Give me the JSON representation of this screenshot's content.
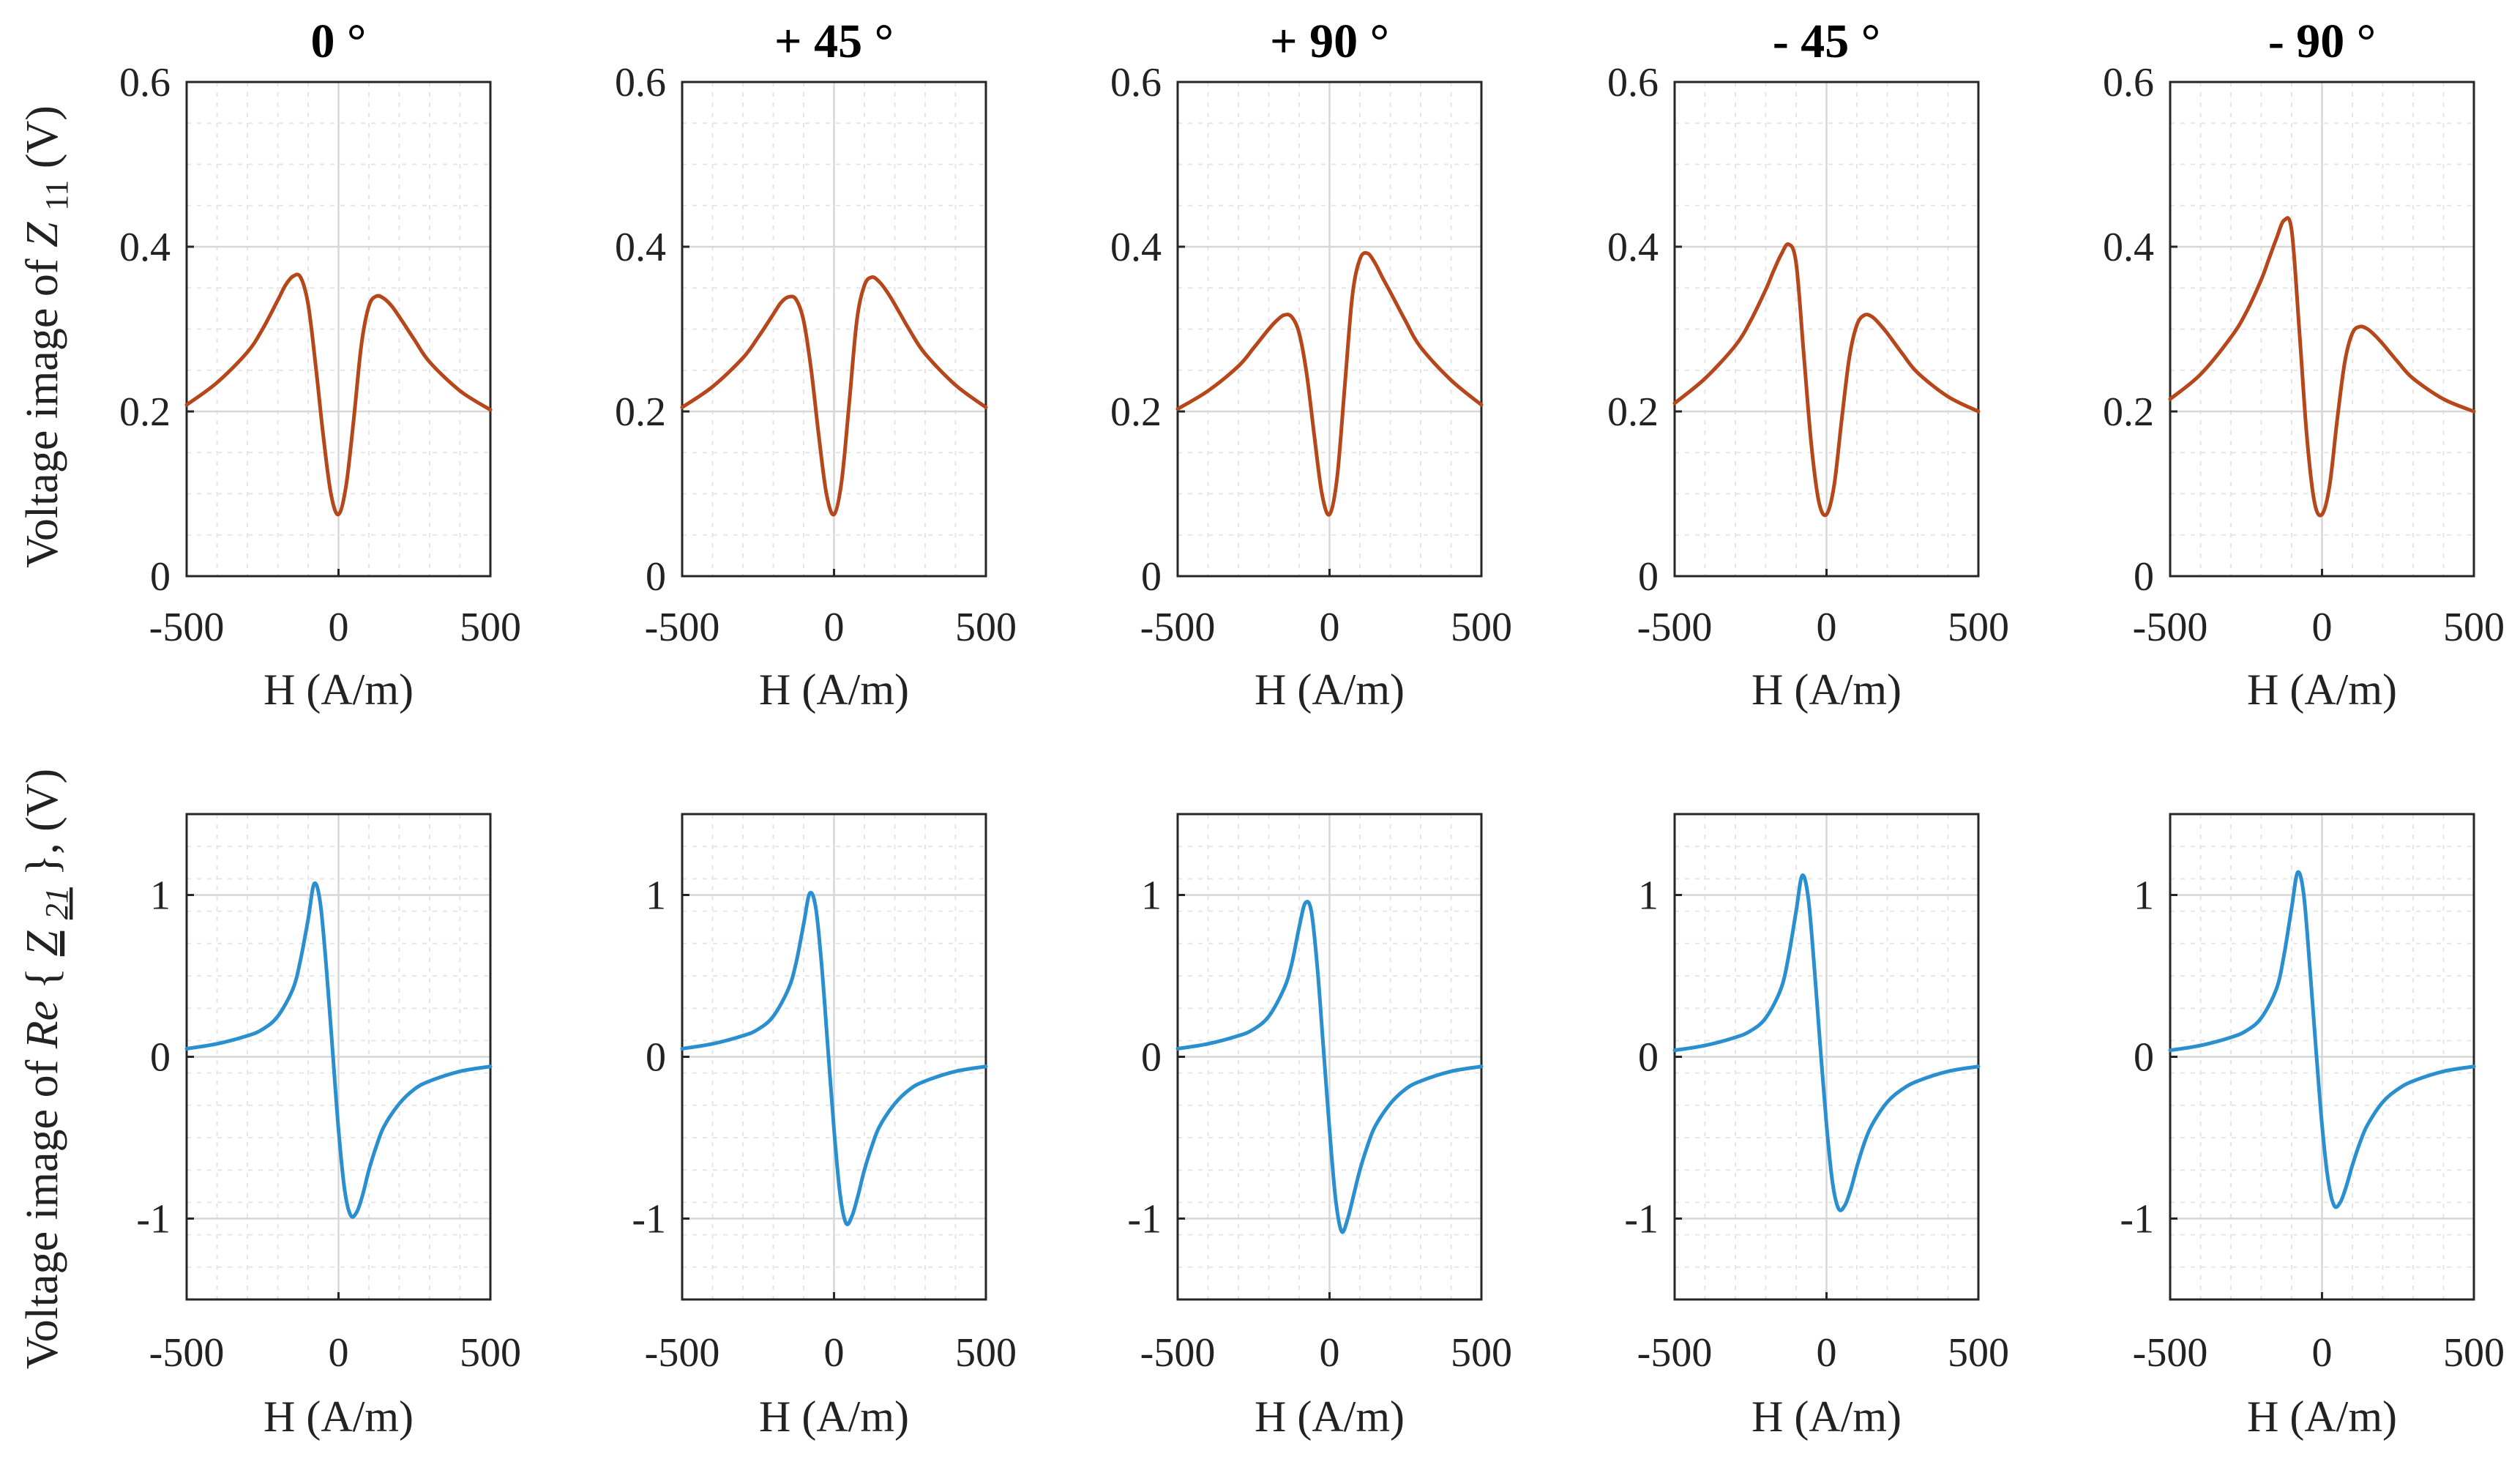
{
  "colors": {
    "top_series": "#b5471a",
    "bottom_series": "#2a8fcf"
  },
  "column_titles": [
    "0 °",
    "+ 45 °",
    "+ 90 °",
    "- 45 °",
    "- 90 °"
  ],
  "ylabel_top": {
    "prefix": "Voltage image of ",
    "symbol": "Z",
    "subscript": "11",
    "suffix": " (V)"
  },
  "ylabel_bottom": {
    "prefix": "Voltage image of ",
    "re": "Re",
    "open": "{",
    "symbol": "Z",
    "subscript": "21",
    "close": "},",
    "suffix": " (V)"
  },
  "chart_data": [
    {
      "type": "line",
      "row": "top",
      "title": "0 °",
      "xlabel": "H (A/m)",
      "ylabel": "Voltage image of Z11 (V)",
      "xlim": [
        -500,
        500
      ],
      "ylim": [
        0,
        0.6
      ],
      "xticks": [
        -500,
        0,
        500
      ],
      "xtick_labels": [
        "-500",
        "0",
        "500"
      ],
      "yticks": [
        0,
        0.2,
        0.4,
        0.6
      ],
      "ytick_labels": [
        "0",
        "0.2",
        "0.4",
        "0.6"
      ],
      "grid": true,
      "series": [
        {
          "name": "Z11",
          "color": "#b5471a",
          "x": [
            -500,
            -400,
            -300,
            -250,
            -200,
            -175,
            -150,
            -125,
            -100,
            -75,
            -50,
            -25,
            0,
            25,
            50,
            75,
            100,
            125,
            150,
            175,
            200,
            250,
            300,
            400,
            500
          ],
          "y": [
            0.208,
            0.235,
            0.272,
            0.3,
            0.335,
            0.353,
            0.364,
            0.363,
            0.33,
            0.255,
            0.17,
            0.1,
            0.075,
            0.11,
            0.19,
            0.28,
            0.328,
            0.34,
            0.337,
            0.328,
            0.315,
            0.287,
            0.26,
            0.225,
            0.202
          ]
        }
      ]
    },
    {
      "type": "line",
      "row": "top",
      "title": "+ 45 °",
      "xlabel": "H (A/m)",
      "ylabel": "",
      "xlim": [
        -500,
        500
      ],
      "ylim": [
        0,
        0.6
      ],
      "xticks": [
        -500,
        0,
        500
      ],
      "xtick_labels": [
        "-500",
        "0",
        "500"
      ],
      "yticks": [
        0,
        0.2,
        0.4,
        0.6
      ],
      "ytick_labels": [
        "0",
        "0.2",
        "0.4",
        "0.6"
      ],
      "grid": true,
      "series": [
        {
          "name": "Z11",
          "color": "#b5471a",
          "x": [
            -500,
            -400,
            -300,
            -250,
            -200,
            -175,
            -150,
            -125,
            -100,
            -75,
            -50,
            -25,
            0,
            25,
            50,
            75,
            100,
            125,
            150,
            175,
            200,
            250,
            300,
            400,
            500
          ],
          "y": [
            0.205,
            0.23,
            0.265,
            0.29,
            0.318,
            0.332,
            0.339,
            0.336,
            0.31,
            0.25,
            0.17,
            0.1,
            0.075,
            0.115,
            0.21,
            0.31,
            0.353,
            0.363,
            0.357,
            0.345,
            0.33,
            0.298,
            0.27,
            0.232,
            0.205
          ]
        }
      ]
    },
    {
      "type": "line",
      "row": "top",
      "title": "+ 90 °",
      "xlabel": "H (A/m)",
      "ylabel": "",
      "xlim": [
        -500,
        500
      ],
      "ylim": [
        0,
        0.6
      ],
      "xticks": [
        -500,
        0,
        500
      ],
      "xtick_labels": [
        "-500",
        "0",
        "500"
      ],
      "yticks": [
        0,
        0.2,
        0.4,
        0.6
      ],
      "ytick_labels": [
        "0",
        "0.2",
        "0.4",
        "0.6"
      ],
      "grid": true,
      "series": [
        {
          "name": "Z11",
          "color": "#b5471a",
          "x": [
            -500,
            -400,
            -300,
            -250,
            -200,
            -175,
            -150,
            -125,
            -100,
            -75,
            -50,
            -25,
            0,
            25,
            50,
            75,
            100,
            125,
            150,
            175,
            200,
            250,
            300,
            400,
            500
          ],
          "y": [
            0.203,
            0.225,
            0.255,
            0.277,
            0.3,
            0.31,
            0.317,
            0.315,
            0.295,
            0.245,
            0.17,
            0.1,
            0.075,
            0.12,
            0.23,
            0.34,
            0.385,
            0.392,
            0.38,
            0.362,
            0.345,
            0.31,
            0.278,
            0.238,
            0.208
          ]
        }
      ]
    },
    {
      "type": "line",
      "row": "top",
      "title": "- 45 °",
      "xlabel": "H (A/m)",
      "ylabel": "",
      "xlim": [
        -500,
        500
      ],
      "ylim": [
        0,
        0.6
      ],
      "xticks": [
        -500,
        0,
        500
      ],
      "xtick_labels": [
        "-500",
        "0",
        "500"
      ],
      "yticks": [
        0,
        0.2,
        0.4,
        0.6
      ],
      "ytick_labels": [
        "0",
        "0.2",
        "0.4",
        "0.6"
      ],
      "grid": true,
      "series": [
        {
          "name": "Z11",
          "color": "#b5471a",
          "x": [
            -500,
            -400,
            -300,
            -250,
            -200,
            -175,
            -150,
            -125,
            -100,
            -75,
            -50,
            -25,
            0,
            25,
            50,
            75,
            100,
            125,
            150,
            175,
            200,
            250,
            300,
            400,
            500
          ],
          "y": [
            0.21,
            0.24,
            0.28,
            0.31,
            0.348,
            0.37,
            0.39,
            0.403,
            0.38,
            0.27,
            0.16,
            0.09,
            0.075,
            0.11,
            0.19,
            0.265,
            0.305,
            0.317,
            0.315,
            0.306,
            0.295,
            0.27,
            0.247,
            0.218,
            0.2
          ]
        }
      ]
    },
    {
      "type": "line",
      "row": "top",
      "title": "- 90 °",
      "xlabel": "H (A/m)",
      "ylabel": "",
      "xlim": [
        -500,
        500
      ],
      "ylim": [
        0,
        0.6
      ],
      "xticks": [
        -500,
        0,
        500
      ],
      "xtick_labels": [
        "-500",
        "0",
        "500"
      ],
      "yticks": [
        0,
        0.2,
        0.4,
        0.6
      ],
      "ytick_labels": [
        "0",
        "0.2",
        "0.4",
        "0.6"
      ],
      "grid": true,
      "series": [
        {
          "name": "Z11",
          "color": "#b5471a",
          "x": [
            -500,
            -400,
            -300,
            -250,
            -200,
            -175,
            -150,
            -125,
            -100,
            -75,
            -50,
            -25,
            0,
            25,
            50,
            75,
            100,
            125,
            150,
            175,
            200,
            250,
            300,
            400,
            500
          ],
          "y": [
            0.215,
            0.245,
            0.29,
            0.32,
            0.36,
            0.385,
            0.41,
            0.432,
            0.42,
            0.3,
            0.17,
            0.09,
            0.075,
            0.11,
            0.19,
            0.26,
            0.295,
            0.303,
            0.3,
            0.292,
            0.282,
            0.26,
            0.24,
            0.215,
            0.2
          ]
        }
      ]
    },
    {
      "type": "line",
      "row": "bottom",
      "title": "0 °",
      "xlabel": "H (A/m)",
      "ylabel": "Voltage image of Re{Z21}, (V)",
      "xlim": [
        -500,
        500
      ],
      "ylim": [
        -1.5,
        1.5
      ],
      "xticks": [
        -500,
        0,
        500
      ],
      "xtick_labels": [
        "-500",
        "0",
        "500"
      ],
      "yticks": [
        -1,
        0,
        1
      ],
      "ytick_labels": [
        "-1",
        "0",
        "1"
      ],
      "grid": true,
      "series": [
        {
          "name": "Re{Z21}",
          "color": "#2a8fcf",
          "x": [
            -500,
            -400,
            -300,
            -250,
            -200,
            -150,
            -125,
            -100,
            -80,
            -60,
            -40,
            -20,
            0,
            20,
            40,
            60,
            80,
            100,
            125,
            150,
            200,
            250,
            300,
            400,
            500
          ],
          "y": [
            0.05,
            0.08,
            0.13,
            0.17,
            0.25,
            0.42,
            0.6,
            0.85,
            1.07,
            0.95,
            0.55,
            0.05,
            -0.45,
            -0.82,
            -0.98,
            -0.96,
            -0.85,
            -0.7,
            -0.55,
            -0.43,
            -0.29,
            -0.2,
            -0.15,
            -0.09,
            -0.06
          ]
        }
      ]
    },
    {
      "type": "line",
      "row": "bottom",
      "title": "+ 45 °",
      "xlabel": "H (A/m)",
      "ylabel": "",
      "xlim": [
        -500,
        500
      ],
      "ylim": [
        -1.5,
        1.5
      ],
      "xticks": [
        -500,
        0,
        500
      ],
      "xtick_labels": [
        "-500",
        "0",
        "500"
      ],
      "yticks": [
        -1,
        0,
        1
      ],
      "ytick_labels": [
        "-1",
        "0",
        "1"
      ],
      "grid": true,
      "series": [
        {
          "name": "Re{Z21}",
          "color": "#2a8fcf",
          "x": [
            -500,
            -400,
            -300,
            -250,
            -200,
            -150,
            -125,
            -100,
            -80,
            -60,
            -40,
            -20,
            0,
            20,
            40,
            60,
            80,
            100,
            125,
            150,
            200,
            250,
            300,
            400,
            500
          ],
          "y": [
            0.05,
            0.08,
            0.13,
            0.17,
            0.25,
            0.42,
            0.58,
            0.82,
            1.01,
            0.92,
            0.55,
            0.05,
            -0.45,
            -0.85,
            -1.03,
            -0.98,
            -0.85,
            -0.7,
            -0.55,
            -0.43,
            -0.29,
            -0.2,
            -0.15,
            -0.09,
            -0.06
          ]
        }
      ]
    },
    {
      "type": "line",
      "row": "bottom",
      "title": "+ 90 °",
      "xlabel": "H (A/m)",
      "ylabel": "",
      "xlim": [
        -500,
        500
      ],
      "ylim": [
        -1.5,
        1.5
      ],
      "xticks": [
        -500,
        0,
        500
      ],
      "xtick_labels": [
        "-500",
        "0",
        "500"
      ],
      "yticks": [
        -1,
        0,
        1
      ],
      "ytick_labels": [
        "-1",
        "0",
        "1"
      ],
      "grid": true,
      "series": [
        {
          "name": "Re{Z21}",
          "color": "#2a8fcf",
          "x": [
            -500,
            -400,
            -300,
            -250,
            -200,
            -150,
            -125,
            -100,
            -80,
            -60,
            -40,
            -20,
            0,
            20,
            40,
            60,
            80,
            100,
            125,
            150,
            200,
            250,
            300,
            400,
            500
          ],
          "y": [
            0.05,
            0.08,
            0.13,
            0.17,
            0.25,
            0.42,
            0.57,
            0.8,
            0.95,
            0.9,
            0.55,
            0.05,
            -0.45,
            -0.88,
            -1.08,
            -1.0,
            -0.85,
            -0.7,
            -0.55,
            -0.43,
            -0.29,
            -0.2,
            -0.15,
            -0.09,
            -0.06
          ]
        }
      ]
    },
    {
      "type": "line",
      "row": "bottom",
      "title": "- 45 °",
      "xlabel": "H (A/m)",
      "ylabel": "",
      "xlim": [
        -500,
        500
      ],
      "ylim": [
        -1.5,
        1.5
      ],
      "xticks": [
        -500,
        0,
        500
      ],
      "xtick_labels": [
        "-500",
        "0",
        "500"
      ],
      "yticks": [
        -1,
        0,
        1
      ],
      "ytick_labels": [
        "-1",
        "0",
        "1"
      ],
      "grid": true,
      "series": [
        {
          "name": "Re{Z21}",
          "color": "#2a8fcf",
          "x": [
            -500,
            -400,
            -300,
            -250,
            -200,
            -150,
            -125,
            -100,
            -80,
            -60,
            -40,
            -20,
            0,
            20,
            40,
            60,
            80,
            100,
            125,
            150,
            200,
            250,
            300,
            400,
            500
          ],
          "y": [
            0.04,
            0.07,
            0.12,
            0.16,
            0.24,
            0.42,
            0.62,
            0.9,
            1.12,
            0.98,
            0.55,
            0.05,
            -0.42,
            -0.78,
            -0.94,
            -0.92,
            -0.82,
            -0.68,
            -0.53,
            -0.42,
            -0.28,
            -0.2,
            -0.15,
            -0.09,
            -0.06
          ]
        }
      ]
    },
    {
      "type": "line",
      "row": "bottom",
      "title": "- 90 °",
      "xlabel": "H (A/m)",
      "ylabel": "",
      "xlim": [
        -500,
        500
      ],
      "ylim": [
        -1.5,
        1.5
      ],
      "xticks": [
        -500,
        0,
        500
      ],
      "xtick_labels": [
        "-500",
        "0",
        "500"
      ],
      "yticks": [
        -1,
        0,
        1
      ],
      "ytick_labels": [
        "-1",
        "0",
        "1"
      ],
      "grid": true,
      "series": [
        {
          "name": "Re{Z21}",
          "color": "#2a8fcf",
          "x": [
            -500,
            -400,
            -300,
            -250,
            -200,
            -150,
            -125,
            -100,
            -80,
            -60,
            -40,
            -20,
            0,
            20,
            40,
            60,
            80,
            100,
            125,
            150,
            200,
            250,
            300,
            400,
            500
          ],
          "y": [
            0.04,
            0.07,
            0.12,
            0.16,
            0.24,
            0.42,
            0.63,
            0.92,
            1.14,
            1.0,
            0.55,
            0.05,
            -0.42,
            -0.76,
            -0.92,
            -0.9,
            -0.8,
            -0.67,
            -0.53,
            -0.42,
            -0.28,
            -0.2,
            -0.15,
            -0.09,
            -0.06
          ]
        }
      ]
    }
  ]
}
